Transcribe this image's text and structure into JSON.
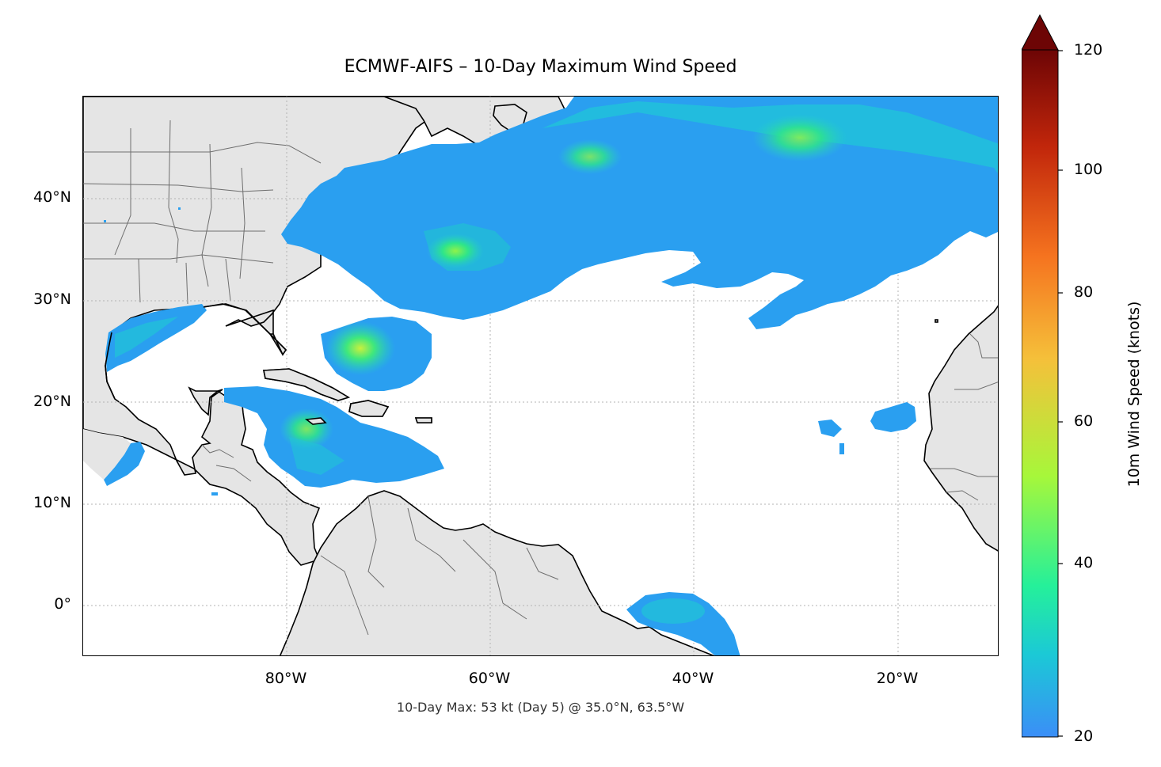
{
  "title": "ECMWF-AIFS – 10-Day Maximum Wind Speed",
  "subtitle": "10-Day Max: 53 kt (Day 5) @ 35.0°N, 63.5°W",
  "lat_ticks": [
    "40°N",
    "30°N",
    "20°N",
    "10°N",
    "0°"
  ],
  "lon_ticks": [
    "80°W",
    "60°W",
    "40°W",
    "20°W"
  ],
  "colorbar": {
    "label": "10m Wind Speed (knots)",
    "ticks": [
      "20",
      "40",
      "60",
      "80",
      "100",
      "120"
    ],
    "min": 20,
    "max": 120,
    "extend": "max",
    "colors": [
      "#3b8ef7",
      "#1bc9d6",
      "#25f09a",
      "#a7f73a",
      "#f5c03a",
      "#f5731f",
      "#c1260b",
      "#6d0505"
    ]
  },
  "colors": {
    "land": "#e5e5e5",
    "coast": "#000000",
    "borders": "#6e6e6e",
    "grid": "#b3b3b3"
  }
}
